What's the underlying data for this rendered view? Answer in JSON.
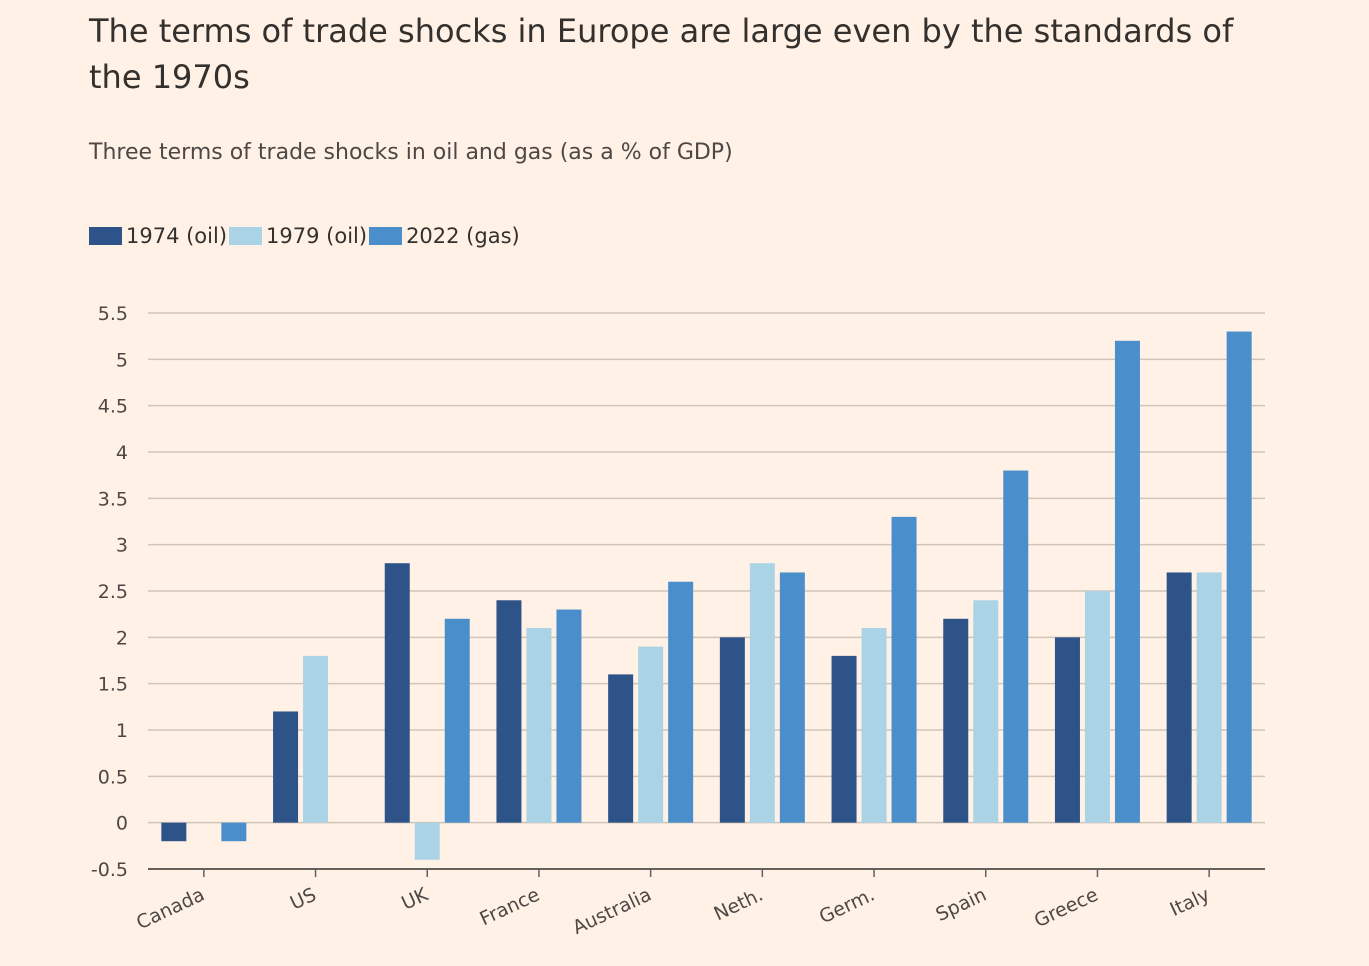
{
  "title": "The terms of trade shocks in Europe are large even by the standards of the 1970s",
  "subtitle": "Three terms of trade shocks in oil and gas (as a % of GDP)",
  "chart_data": {
    "type": "bar",
    "title": "The terms of trade shocks in Europe are large even by the standards of the 1970s",
    "subtitle": "Three terms of trade shocks in oil and gas (as a % of GDP)",
    "xlabel": "",
    "ylabel": "",
    "ylim": [
      -0.5,
      5.5
    ],
    "yticks": [
      -0.5,
      0,
      0.5,
      1,
      1.5,
      2,
      2.5,
      3,
      3.5,
      4,
      4.5,
      5,
      5.5
    ],
    "ytick_labels": [
      "-0.5",
      "0",
      "0.5",
      "1",
      "1.5",
      "2",
      "2.5",
      "3",
      "3.5",
      "4",
      "4.5",
      "5",
      "5.5"
    ],
    "grid": true,
    "legend_position": "top-left",
    "categories": [
      "Canada",
      "US",
      "UK",
      "France",
      "Australia",
      "Neth.",
      "Germ.",
      "Spain",
      "Greece",
      "Italy"
    ],
    "series": [
      {
        "name": "1974 (oil)",
        "color": "#2E5389",
        "values": [
          -0.2,
          1.2,
          2.8,
          2.4,
          1.6,
          2.0,
          1.8,
          2.2,
          2.0,
          2.7
        ]
      },
      {
        "name": "1979 (oil)",
        "color": "#ABD3E6",
        "values": [
          0,
          1.8,
          -0.4,
          2.1,
          1.9,
          2.8,
          2.1,
          2.4,
          2.5,
          2.7
        ]
      },
      {
        "name": "2022 (gas)",
        "color": "#4A8FCB",
        "values": [
          -0.2,
          null,
          2.2,
          2.3,
          2.6,
          2.7,
          3.3,
          3.8,
          5.2,
          5.3
        ]
      }
    ]
  }
}
